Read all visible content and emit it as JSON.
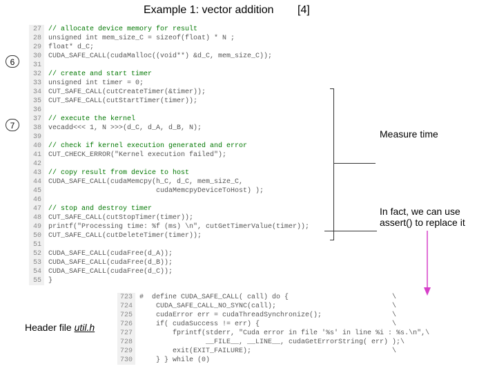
{
  "title": "Example 1: vector addition",
  "title_bracket": "[4]",
  "bubble6": "6",
  "bubble7": "7",
  "annot_measure": "Measure time",
  "annot_assert_l1": "In fact, we can use",
  "annot_assert_l2": "assert() to replace it",
  "footer_label": "Header file util.h",
  "footer_label_prefix": "Header file ",
  "footer_label_file": "util.h",
  "main_code": {
    "lines": [
      {
        "n": "27",
        "t": "// allocate device memory for result",
        "cls": "cmt"
      },
      {
        "n": "28",
        "t": "unsigned int mem_size_C = sizeof(float) * N ;",
        "cls": ""
      },
      {
        "n": "29",
        "t": "float* d_C;",
        "cls": ""
      },
      {
        "n": "30",
        "t": "CUDA_SAFE_CALL(cudaMalloc((void**) &d_C, mem_size_C));",
        "cls": ""
      },
      {
        "n": "31",
        "t": "",
        "cls": ""
      },
      {
        "n": "32",
        "t": "// create and start timer",
        "cls": "cmt"
      },
      {
        "n": "33",
        "t": "unsigned int timer = 0;",
        "cls": ""
      },
      {
        "n": "34",
        "t": "CUT_SAFE_CALL(cutCreateTimer(&timer));",
        "cls": ""
      },
      {
        "n": "35",
        "t": "CUT_SAFE_CALL(cutStartTimer(timer));",
        "cls": ""
      },
      {
        "n": "36",
        "t": "",
        "cls": ""
      },
      {
        "n": "37",
        "t": "// execute the kernel",
        "cls": "cmt"
      },
      {
        "n": "38",
        "t": "vecadd<<< 1, N >>>(d_C, d_A, d_B, N);",
        "cls": ""
      },
      {
        "n": "39",
        "t": "",
        "cls": ""
      },
      {
        "n": "40",
        "t": "// check if kernel execution generated and error",
        "cls": "cmt"
      },
      {
        "n": "41",
        "t": "CUT_CHECK_ERROR(\"Kernel execution failed\");",
        "cls": ""
      },
      {
        "n": "42",
        "t": "",
        "cls": ""
      },
      {
        "n": "43",
        "t": "// copy result from device to host",
        "cls": "cmt"
      },
      {
        "n": "44",
        "t": "CUDA_SAFE_CALL(cudaMemcpy(h_C, d_C, mem_size_C,",
        "cls": ""
      },
      {
        "n": "45",
        "t": "                          cudaMemcpyDeviceToHost) );",
        "cls": ""
      },
      {
        "n": "46",
        "t": "",
        "cls": ""
      },
      {
        "n": "47",
        "t": "// stop and destroy timer",
        "cls": "cmt"
      },
      {
        "n": "48",
        "t": "CUT_SAFE_CALL(cutStopTimer(timer));",
        "cls": ""
      },
      {
        "n": "49",
        "t": "printf(\"Processing time: %f (ms) \\n\", cutGetTimerValue(timer));",
        "cls": ""
      },
      {
        "n": "50",
        "t": "CUT_SAFE_CALL(cutDeleteTimer(timer));",
        "cls": ""
      },
      {
        "n": "51",
        "t": "",
        "cls": ""
      },
      {
        "n": "52",
        "t": "CUDA_SAFE_CALL(cudaFree(d_A));",
        "cls": ""
      },
      {
        "n": "53",
        "t": "CUDA_SAFE_CALL(cudaFree(d_B));",
        "cls": ""
      },
      {
        "n": "54",
        "t": "CUDA_SAFE_CALL(cudaFree(d_C));",
        "cls": ""
      },
      {
        "n": "55",
        "t": "}",
        "cls": ""
      }
    ]
  },
  "macro_code": {
    "lines": [
      {
        "n": "723",
        "t": "#  define CUDA_SAFE_CALL( call) do {                         \\",
        "cls": ""
      },
      {
        "n": "724",
        "t": "    CUDA_SAFE_CALL_NO_SYNC(call);                            \\",
        "cls": ""
      },
      {
        "n": "725",
        "t": "    cudaError err = cudaThreadSynchronize();                 \\",
        "cls": ""
      },
      {
        "n": "726",
        "t": "    if( cudaSuccess != err) {                                \\",
        "cls": ""
      },
      {
        "n": "727",
        "t": "        fprintf(stderr, \"Cuda error in file '%s' in line %i : %s.\\n\",\\",
        "cls": ""
      },
      {
        "n": "728",
        "t": "                __FILE__, __LINE__, cudaGetErrorString( err) );\\",
        "cls": ""
      },
      {
        "n": "729",
        "t": "        exit(EXIT_FAILURE);                                  \\",
        "cls": ""
      },
      {
        "n": "730",
        "t": "    } } while (0)",
        "cls": ""
      }
    ]
  },
  "colors": {
    "arrow_magenta": "#d63fc9",
    "bracket": "#333333"
  }
}
